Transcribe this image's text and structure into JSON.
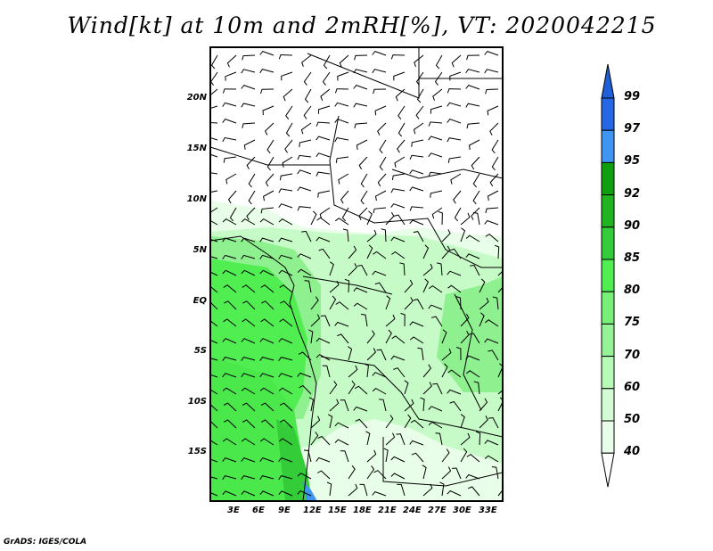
{
  "title": "Wind[kt] at 10m and 2mRH[%], VT: 2020042215",
  "credit": "GrADS: IGES/COLA",
  "lat_labels": [
    "20N",
    "15N",
    "10N",
    "5N",
    "EQ",
    "5S",
    "10S",
    "15S"
  ],
  "lon_labels": [
    "3E",
    "6E",
    "9E",
    "12E",
    "15E",
    "18E",
    "21E",
    "24E",
    "27E",
    "30E",
    "33E"
  ],
  "colorbar": {
    "labels": [
      "99",
      "97",
      "95",
      "92",
      "90",
      "85",
      "80",
      "75",
      "70",
      "60",
      "50",
      "40"
    ],
    "colors": [
      "#1f5fd8",
      "#2468e6",
      "#3f96f2",
      "#0e9e0e",
      "#20b420",
      "#34cc38",
      "#50ee50",
      "#78f078",
      "#96f296",
      "#b6fab6",
      "#d4fcd4",
      "#e8fee8",
      "#ffffff"
    ]
  }
}
